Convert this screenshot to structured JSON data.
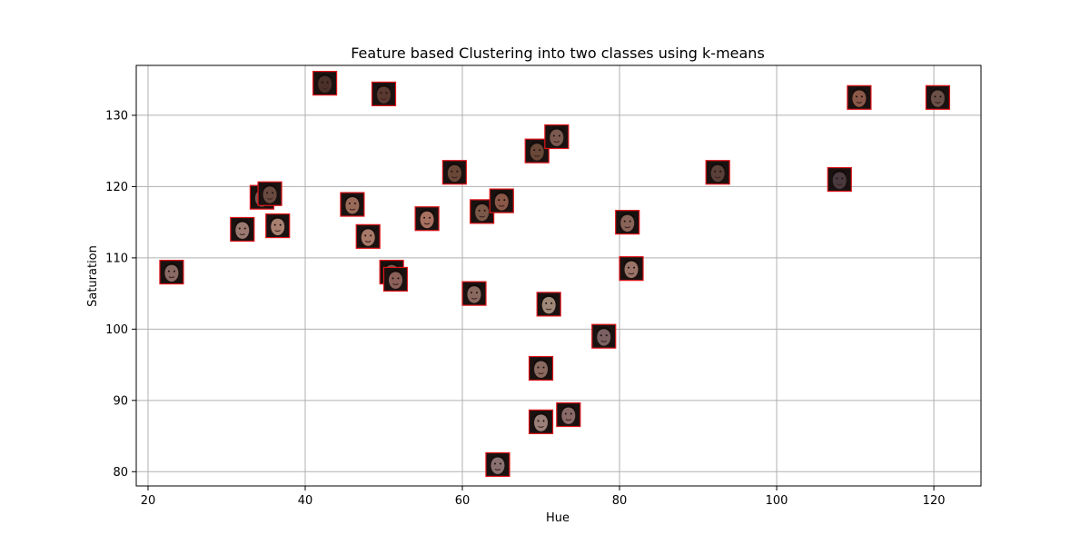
{
  "chart_data": {
    "type": "scatter",
    "title": "Feature based Clustering into two classes using k-means",
    "xlabel": "Hue",
    "ylabel": "Saturation",
    "xlim": [
      18.5,
      126
    ],
    "ylim": [
      78,
      137
    ],
    "xticks": [
      20,
      40,
      60,
      80,
      100,
      120
    ],
    "yticks": [
      80,
      90,
      100,
      110,
      120,
      130
    ],
    "grid": true,
    "marker": "face-thumbnail",
    "marker_border_color": "#e0141a",
    "points": [
      {
        "x": 23,
        "y": 108,
        "tone": "#8a6a64"
      },
      {
        "x": 32,
        "y": 114,
        "tone": "#9a7a70"
      },
      {
        "x": 34.5,
        "y": 118.5,
        "tone": "#7a5a50"
      },
      {
        "x": 35.5,
        "y": 119,
        "tone": "#6a4a40"
      },
      {
        "x": 36.5,
        "y": 114.5,
        "tone": "#a88070"
      },
      {
        "x": 42.5,
        "y": 134.5,
        "tone": "#4a3028"
      },
      {
        "x": 46,
        "y": 117.5,
        "tone": "#9a6a58"
      },
      {
        "x": 48,
        "y": 113,
        "tone": "#a87868"
      },
      {
        "x": 50,
        "y": 133,
        "tone": "#5a3a30"
      },
      {
        "x": 51,
        "y": 108,
        "tone": "#7a5a50"
      },
      {
        "x": 51.5,
        "y": 107,
        "tone": "#8a6058"
      },
      {
        "x": 55.5,
        "y": 115.5,
        "tone": "#a87060"
      },
      {
        "x": 59,
        "y": 122,
        "tone": "#6a4838"
      },
      {
        "x": 61.5,
        "y": 105,
        "tone": "#8a6a60"
      },
      {
        "x": 62.5,
        "y": 116.5,
        "tone": "#7a5848"
      },
      {
        "x": 65,
        "y": 118,
        "tone": "#8a5848"
      },
      {
        "x": 64.5,
        "y": 81,
        "tone": "#8a7070"
      },
      {
        "x": 69.5,
        "y": 125,
        "tone": "#6a4838"
      },
      {
        "x": 70,
        "y": 94.5,
        "tone": "#8a6a60"
      },
      {
        "x": 70,
        "y": 87,
        "tone": "#9a8078"
      },
      {
        "x": 71,
        "y": 103.5,
        "tone": "#a08878"
      },
      {
        "x": 72,
        "y": 127,
        "tone": "#7a5a50"
      },
      {
        "x": 73.5,
        "y": 88,
        "tone": "#8a6a68"
      },
      {
        "x": 78,
        "y": 99,
        "tone": "#7a6060"
      },
      {
        "x": 81,
        "y": 115,
        "tone": "#8a6458"
      },
      {
        "x": 81.5,
        "y": 108.5,
        "tone": "#9a7468"
      },
      {
        "x": 92.5,
        "y": 122,
        "tone": "#5a4038"
      },
      {
        "x": 108,
        "y": 121,
        "tone": "#4a3a40"
      },
      {
        "x": 110.5,
        "y": 132.5,
        "tone": "#8a5848"
      },
      {
        "x": 120.5,
        "y": 132.5,
        "tone": "#6a5048"
      }
    ]
  }
}
